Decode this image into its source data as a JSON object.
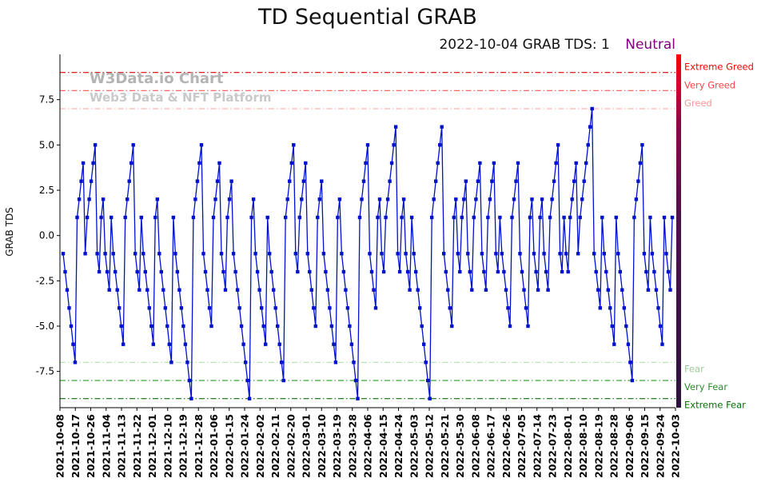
{
  "chart_data": {
    "type": "line",
    "title": "TD Sequential GRAB",
    "subtitle_date": "2022-10-04 GRAB TDS: 1",
    "subtitle_status": "Neutral",
    "subtitle_status_color": "#800080",
    "ylabel": "GRAB TDS",
    "ylim": [
      -9.5,
      10.0
    ],
    "yticks": [
      7.5,
      5.0,
      2.5,
      0.0,
      -2.5,
      -5.0,
      -7.5
    ],
    "x_tick_labels": [
      "2021-10-08",
      "2021-10-17",
      "2021-10-26",
      "2021-11-04",
      "2021-11-13",
      "2021-11-22",
      "2021-12-01",
      "2021-12-10",
      "2021-12-19",
      "2021-12-28",
      "2022-01-06",
      "2022-01-15",
      "2022-01-24",
      "2022-02-02",
      "2022-02-11",
      "2022-02-20",
      "2022-03-01",
      "2022-03-10",
      "2022-03-19",
      "2022-03-28",
      "2022-04-06",
      "2022-04-15",
      "2022-04-24",
      "2022-05-03",
      "2022-05-12",
      "2022-05-21",
      "2022-05-30",
      "2022-06-08",
      "2022-06-17",
      "2022-06-26",
      "2022-07-05",
      "2022-07-14",
      "2022-07-23",
      "2022-08-01",
      "2022-08-10",
      "2022-08-19",
      "2022-08-28",
      "2022-09-06",
      "2022-09-15",
      "2022-09-24",
      "2022-10-03"
    ],
    "watermark_line1": "W3Data.io Chart",
    "watermark_line2": "Web3 Data & NFT Platform",
    "series": [
      {
        "name": "GRAB TDS",
        "color": "#0011cc",
        "marker": "square",
        "values": [
          -1,
          -2,
          -3,
          -4,
          -5,
          -6,
          -7,
          1,
          2,
          3,
          4,
          -1,
          1,
          2,
          3,
          4,
          5,
          -1,
          -2,
          1,
          2,
          -1,
          -2,
          -3,
          1,
          -1,
          -2,
          -3,
          -4,
          -5,
          -6,
          1,
          2,
          3,
          4,
          5,
          -1,
          -2,
          -3,
          1,
          -1,
          -2,
          -3,
          -4,
          -5,
          -6,
          1,
          2,
          -1,
          -2,
          -3,
          -4,
          -5,
          -6,
          -7,
          1,
          -1,
          -2,
          -3,
          -4,
          -5,
          -6,
          -7,
          -8,
          -9,
          1,
          2,
          3,
          4,
          5,
          -1,
          -2,
          -3,
          -4,
          -5,
          1,
          2,
          3,
          4,
          -1,
          -2,
          -3,
          1,
          2,
          3,
          -1,
          -2,
          -3,
          -4,
          -5,
          -6,
          -7,
          -8,
          -9,
          1,
          2,
          -1,
          -2,
          -3,
          -4,
          -5,
          -6,
          1,
          -1,
          -2,
          -3,
          -4,
          -5,
          -6,
          -7,
          -8,
          1,
          2,
          3,
          4,
          5,
          -1,
          -2,
          1,
          2,
          3,
          4,
          -1,
          -2,
          -3,
          -4,
          -5,
          1,
          2,
          3,
          -1,
          -2,
          -3,
          -4,
          -5,
          -6,
          -7,
          1,
          2,
          -1,
          -2,
          -3,
          -4,
          -5,
          -6,
          -7,
          -8,
          -9,
          1,
          2,
          3,
          4,
          5,
          -1,
          -2,
          -3,
          -4,
          1,
          2,
          -1,
          -2,
          1,
          2,
          3,
          4,
          5,
          6,
          -1,
          -2,
          1,
          2,
          -1,
          -2,
          -3,
          1,
          -1,
          -2,
          -3,
          -4,
          -5,
          -6,
          -7,
          -8,
          -9,
          1,
          2,
          3,
          4,
          5,
          6,
          -1,
          -2,
          -3,
          -4,
          -5,
          1,
          2,
          -1,
          -2,
          1,
          2,
          3,
          -1,
          -2,
          -3,
          1,
          2,
          3,
          4,
          -1,
          -2,
          -3,
          1,
          2,
          3,
          4,
          -1,
          -2,
          1,
          -1,
          -2,
          -3,
          -4,
          -5,
          1,
          2,
          3,
          4,
          -1,
          -2,
          -3,
          -4,
          -5,
          1,
          2,
          -1,
          -2,
          -3,
          1,
          2,
          -1,
          -2,
          -3,
          1,
          2,
          3,
          4,
          5,
          -1,
          -2,
          1,
          -1,
          -2,
          1,
          2,
          3,
          4,
          -1,
          1,
          2,
          3,
          4,
          5,
          6,
          7,
          -1,
          -2,
          -3,
          -4,
          1,
          -1,
          -2,
          -3,
          -4,
          -5,
          -6,
          1,
          -1,
          -2,
          -3,
          -4,
          -5,
          -6,
          -7,
          -8,
          1,
          2,
          3,
          4,
          5,
          -1,
          -2,
          -3,
          1,
          -1,
          -2,
          -3,
          -4,
          -5,
          -6,
          1,
          -1,
          -2,
          -3,
          1
        ]
      }
    ],
    "thresholds": [
      {
        "value": 9,
        "label": "Extreme Greed",
        "line_color": "#dd0000",
        "label_color": "#ff0000"
      },
      {
        "value": 8,
        "label": "Very Greed",
        "line_color": "#ff5555",
        "label_color": "#ff4444"
      },
      {
        "value": 7,
        "label": "Greed",
        "line_color": "#ffb3b3",
        "label_color": "#ff9999"
      },
      {
        "value": -7,
        "label": "Fear",
        "line_color": "#b3dfb3",
        "label_color": "#99cc99"
      },
      {
        "value": -8,
        "label": "Very Fear",
        "line_color": "#3aa83a",
        "label_color": "#2e8b2e"
      },
      {
        "value": -9,
        "label": "Extreme Fear",
        "line_color": "#0b6e0b",
        "label_color": "#067006"
      }
    ],
    "right_strip": {
      "stops": [
        {
          "offset": "0%",
          "color": "#ff0000"
        },
        {
          "offset": "9%",
          "color": "#d40030"
        },
        {
          "offset": "20%",
          "color": "#8a0548"
        },
        {
          "offset": "45%",
          "color": "#52104e"
        },
        {
          "offset": "75%",
          "color": "#3d1047"
        },
        {
          "offset": "100%",
          "color": "#2e123f"
        }
      ]
    },
    "grid": false,
    "legend_position": "none"
  }
}
